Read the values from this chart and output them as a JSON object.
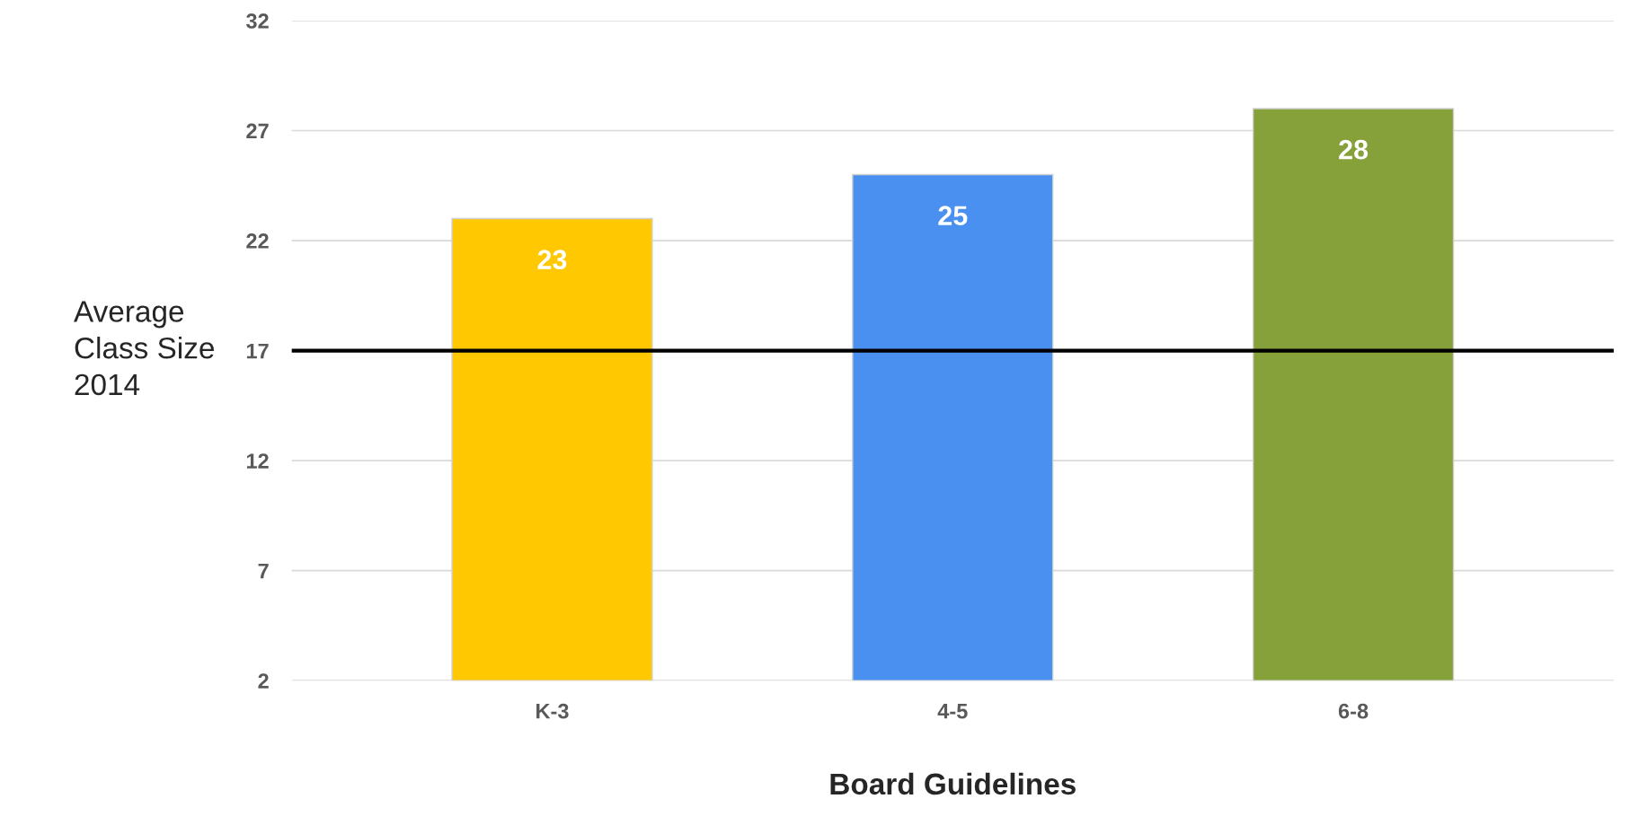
{
  "chart_data": {
    "type": "bar",
    "xlabel": "Board Guidelines",
    "categories": [
      "K-3",
      "4-5",
      "6-8"
    ],
    "values": [
      23,
      25,
      28
    ],
    "colors": [
      "#ffc800",
      "#4a90f0",
      "#86a03a"
    ],
    "ylim": [
      2,
      32
    ],
    "yticks": [
      2,
      7,
      12,
      17,
      22,
      27,
      32
    ],
    "grid": "y",
    "data_labels": true,
    "ref_lines": [
      {
        "axis": "y",
        "value": 17,
        "label": "Average\nClass Size\n2014",
        "color": "#000000",
        "line_style": "solid"
      }
    ]
  }
}
